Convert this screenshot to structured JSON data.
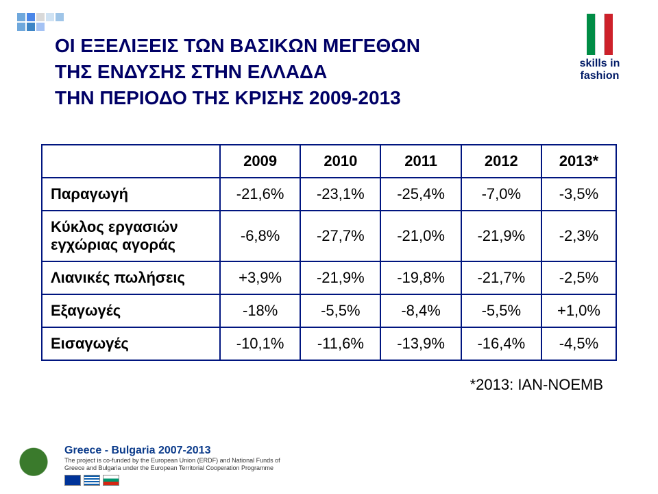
{
  "decor_colors": [
    "#6fa8dc",
    "#4a86e8",
    "#d9d9d9",
    "#cfe2f3",
    "#9fc5e8",
    "#6fa8dc",
    "#3d85c6",
    "#a4c2f4"
  ],
  "title_lines": [
    "ΟΙ ΕΞΕΛΙΞΕΙΣ ΤΩΝ ΒΑΣΙΚΩΝ ΜΕΓΕΘΩΝ",
    "ΤΗΣ ΕΝΔΥΣΗΣ ΣΤΗΝ ΕΛΛΑΔΑ",
    "ΤΗΝ ΠΕΡΙΟΔΟ ΤΗΣ ΚΡΙΣΗΣ 2009-2013"
  ],
  "title_color": "#000066",
  "title_fontsize": 28,
  "logo": {
    "colors": [
      "#008c45",
      "#ffffff",
      "#cd212a"
    ],
    "line1": "skills in",
    "line2": "fashion",
    "text_color": "#001a66"
  },
  "table": {
    "border_color": "#00157f",
    "header_fontsize": 22,
    "cell_fontsize": 22,
    "columns": [
      "",
      "2009",
      "2010",
      "2011",
      "2012",
      "2013*"
    ],
    "rows": [
      {
        "label": "Παραγωγή",
        "values": [
          "-21,6%",
          "-23,1%",
          "-25,4%",
          "-7,0%",
          "-3,5%"
        ]
      },
      {
        "label": "Κύκλος εργασιών εγχώριας αγοράς",
        "values": [
          "-6,8%",
          "-27,7%",
          "-21,0%",
          "-21,9%",
          "-2,3%"
        ]
      },
      {
        "label": "Λιανικές πωλήσεις",
        "values": [
          "+3,9%",
          "-21,9%",
          "-19,8%",
          "-21,7%",
          "-2,5%"
        ]
      },
      {
        "label": "Εξαγωγές",
        "values": [
          "-18%",
          "-5,5%",
          "-8,4%",
          "-5,5%",
          "+1,0%"
        ]
      },
      {
        "label": "Εισαγωγές",
        "values": [
          "-10,1%",
          "-11,6%",
          "-13,9%",
          "-16,4%",
          "-4,5%"
        ]
      }
    ]
  },
  "footnote": "*2013: IAN-NOEMB",
  "footer": {
    "program_title": "Greece - Bulgaria 2007-2013",
    "program_sub": "The project is co-funded by the European Union (ERDF) and National Funds of Greece and Bulgaria under the European Territorial Cooperation Programme",
    "flag_colors": {
      "eu": "#003399",
      "gr": "#0d5eaf",
      "bg_stripes": [
        "#ffffff",
        "#00966e",
        "#d62612"
      ]
    }
  }
}
